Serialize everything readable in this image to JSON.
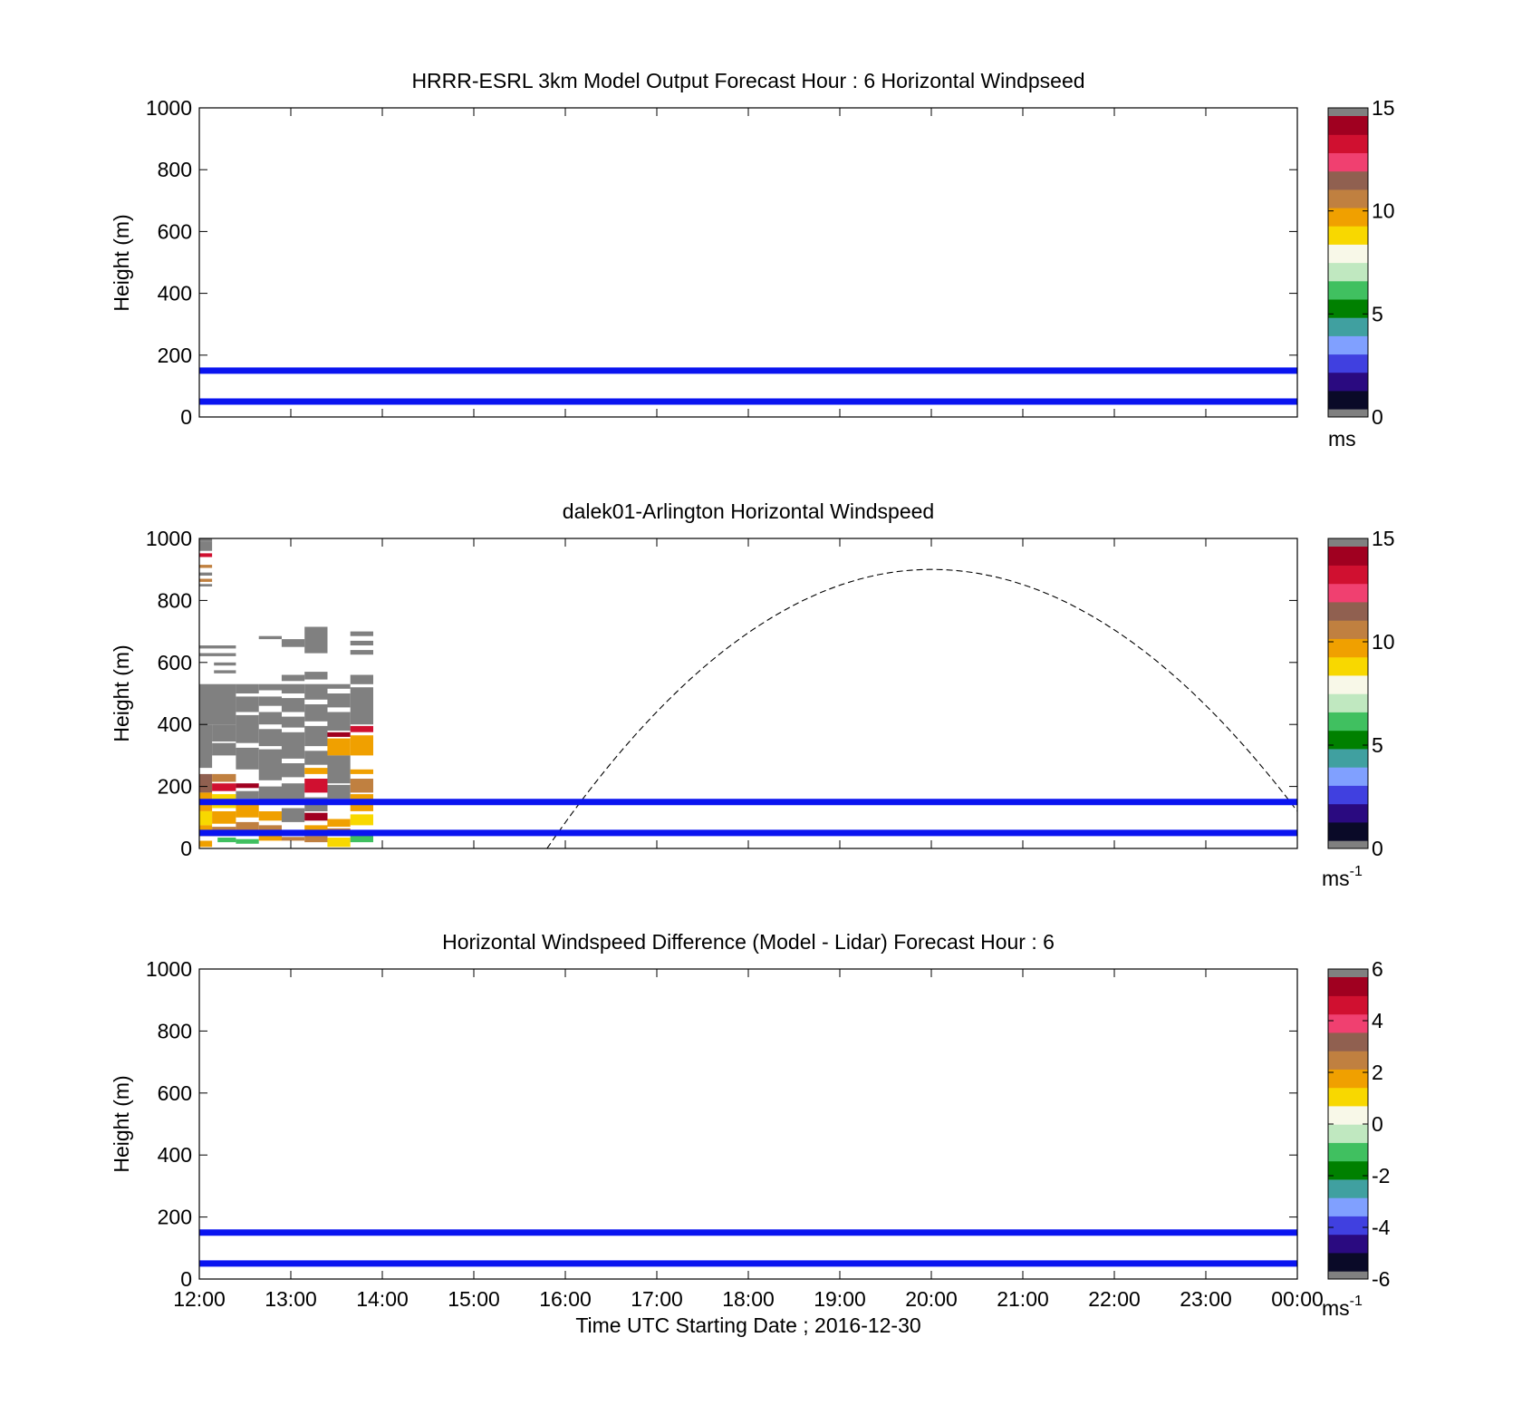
{
  "chart_data": [
    {
      "type": "heatmap",
      "title": "HRRR-ESRL 3km Model Output   Forecast Hour : 6 Horizontal Windpseed",
      "ylabel": "Height (m)",
      "xlabel": "",
      "ylim": [
        0,
        1000
      ],
      "yticks": [
        "0",
        "200",
        "400",
        "600",
        "800",
        "1000"
      ],
      "xlim": [
        12,
        24
      ],
      "xticks": [
        "12:00",
        "13:00",
        "14:00",
        "15:00",
        "16:00",
        "17:00",
        "18:00",
        "19:00",
        "20:00",
        "21:00",
        "22:00",
        "23:00",
        "00:00"
      ],
      "xtick_labels_visible": false,
      "reference_lines": [
        {
          "y": 150,
          "color": "#0a14f0"
        },
        {
          "y": 50,
          "color": "#0a14f0"
        }
      ],
      "colorbar": {
        "min": 0,
        "max": 15,
        "ticks": [
          "0",
          "5",
          "10",
          "15"
        ],
        "unit": "ms",
        "unit_sup": ""
      },
      "cells": [],
      "curve": null
    },
    {
      "type": "heatmap",
      "title": "dalek01-Arlington  Horizontal Windspeed",
      "ylabel": "Height (m)",
      "xlabel": "",
      "ylim": [
        0,
        1000
      ],
      "yticks": [
        "0",
        "200",
        "400",
        "600",
        "800",
        "1000"
      ],
      "xlim": [
        12,
        24
      ],
      "xticks": [
        "12:00",
        "13:00",
        "14:00",
        "15:00",
        "16:00",
        "17:00",
        "18:00",
        "19:00",
        "20:00",
        "21:00",
        "22:00",
        "23:00",
        "00:00"
      ],
      "xtick_labels_visible": false,
      "reference_lines": [
        {
          "y": 150,
          "color": "#0a14f0"
        },
        {
          "y": 50,
          "color": "#0a14f0"
        }
      ],
      "colorbar": {
        "min": 0,
        "max": 15,
        "ticks": [
          "0",
          "5",
          "10",
          "15"
        ],
        "unit": "ms",
        "unit_sup": "-1"
      },
      "curve": {
        "peak_x": 20.0,
        "peak_y": 900,
        "start_x": 15.8,
        "start_y": 0,
        "end_x": 24.0,
        "end_y": 120,
        "style": "dashed"
      },
      "cells": [
        {
          "x": 12.0,
          "w": 0.14,
          "y": 990,
          "h": 10,
          "v": 16
        },
        {
          "x": 12.0,
          "w": 0.14,
          "y": 960,
          "h": 30,
          "v": 16
        },
        {
          "x": 12.0,
          "w": 0.14,
          "y": 940,
          "h": 12,
          "v": 14
        },
        {
          "x": 12.0,
          "w": 0.14,
          "y": 905,
          "h": 10,
          "v": 11
        },
        {
          "x": 12.0,
          "w": 0.14,
          "y": 880,
          "h": 10,
          "v": 16
        },
        {
          "x": 12.0,
          "w": 0.14,
          "y": 860,
          "h": 10,
          "v": 11
        },
        {
          "x": 12.0,
          "w": 0.14,
          "y": 845,
          "h": 8,
          "v": 16
        },
        {
          "x": 12.0,
          "w": 0.4,
          "y": 645,
          "h": 10,
          "v": 16
        },
        {
          "x": 12.0,
          "w": 0.4,
          "y": 620,
          "h": 10,
          "v": 16
        },
        {
          "x": 12.16,
          "w": 0.24,
          "y": 590,
          "h": 10,
          "v": 16
        },
        {
          "x": 12.16,
          "w": 0.24,
          "y": 565,
          "h": 10,
          "v": 16
        },
        {
          "x": 12.0,
          "w": 0.4,
          "y": 400,
          "h": 130,
          "v": 16
        },
        {
          "x": 12.0,
          "w": 0.14,
          "y": 260,
          "h": 140,
          "v": 16
        },
        {
          "x": 12.14,
          "w": 0.26,
          "y": 345,
          "h": 55,
          "v": 16
        },
        {
          "x": 12.0,
          "w": 0.14,
          "y": 180,
          "h": 60,
          "v": 12
        },
        {
          "x": 12.0,
          "w": 0.14,
          "y": 120,
          "h": 60,
          "v": 10
        },
        {
          "x": 12.0,
          "w": 0.14,
          "y": 75,
          "h": 45,
          "v": 9
        },
        {
          "x": 12.0,
          "w": 0.14,
          "y": 40,
          "h": 35,
          "v": 10
        },
        {
          "x": 12.0,
          "w": 0.14,
          "y": 5,
          "h": 20,
          "v": 10
        },
        {
          "x": 12.14,
          "w": 0.26,
          "y": 300,
          "h": 40,
          "v": 16
        },
        {
          "x": 12.14,
          "w": 0.26,
          "y": 215,
          "h": 25,
          "v": 11
        },
        {
          "x": 12.14,
          "w": 0.26,
          "y": 185,
          "h": 25,
          "v": 14
        },
        {
          "x": 12.14,
          "w": 0.26,
          "y": 130,
          "h": 45,
          "v": 9
        },
        {
          "x": 12.14,
          "w": 0.26,
          "y": 80,
          "h": 40,
          "v": 10
        },
        {
          "x": 12.14,
          "w": 0.26,
          "y": 40,
          "h": 30,
          "v": 11
        },
        {
          "x": 12.2,
          "w": 0.2,
          "y": 20,
          "h": 15,
          "v": 6
        },
        {
          "x": 12.4,
          "w": 0.25,
          "y": 500,
          "h": 30,
          "v": 16
        },
        {
          "x": 12.4,
          "w": 0.25,
          "y": 440,
          "h": 50,
          "v": 16
        },
        {
          "x": 12.4,
          "w": 0.25,
          "y": 340,
          "h": 90,
          "v": 16
        },
        {
          "x": 12.4,
          "w": 0.25,
          "y": 255,
          "h": 70,
          "v": 16
        },
        {
          "x": 12.4,
          "w": 0.25,
          "y": 195,
          "h": 15,
          "v": 15
        },
        {
          "x": 12.4,
          "w": 0.25,
          "y": 160,
          "h": 25,
          "v": 16
        },
        {
          "x": 12.4,
          "w": 0.25,
          "y": 100,
          "h": 45,
          "v": 10
        },
        {
          "x": 12.4,
          "w": 0.25,
          "y": 55,
          "h": 30,
          "v": 11
        },
        {
          "x": 12.4,
          "w": 0.25,
          "y": 15,
          "h": 15,
          "v": 6
        },
        {
          "x": 12.65,
          "w": 0.25,
          "y": 675,
          "h": 10,
          "v": 16
        },
        {
          "x": 12.65,
          "w": 0.25,
          "y": 510,
          "h": 20,
          "v": 16
        },
        {
          "x": 12.65,
          "w": 0.25,
          "y": 460,
          "h": 30,
          "v": 16
        },
        {
          "x": 12.65,
          "w": 0.25,
          "y": 400,
          "h": 40,
          "v": 16
        },
        {
          "x": 12.65,
          "w": 0.25,
          "y": 330,
          "h": 55,
          "v": 16
        },
        {
          "x": 12.65,
          "w": 0.25,
          "y": 220,
          "h": 100,
          "v": 16
        },
        {
          "x": 12.65,
          "w": 0.25,
          "y": 140,
          "h": 60,
          "v": 16
        },
        {
          "x": 12.65,
          "w": 0.25,
          "y": 90,
          "h": 30,
          "v": 10
        },
        {
          "x": 12.65,
          "w": 0.25,
          "y": 60,
          "h": 15,
          "v": 11
        },
        {
          "x": 12.65,
          "w": 0.25,
          "y": 25,
          "h": 20,
          "v": 10
        },
        {
          "x": 12.9,
          "w": 0.25,
          "y": 650,
          "h": 25,
          "v": 16
        },
        {
          "x": 12.9,
          "w": 0.25,
          "y": 540,
          "h": 20,
          "v": 16
        },
        {
          "x": 12.9,
          "w": 0.25,
          "y": 500,
          "h": 30,
          "v": 16
        },
        {
          "x": 12.9,
          "w": 0.25,
          "y": 440,
          "h": 45,
          "v": 16
        },
        {
          "x": 12.9,
          "w": 0.25,
          "y": 390,
          "h": 35,
          "v": 16
        },
        {
          "x": 12.9,
          "w": 0.25,
          "y": 290,
          "h": 85,
          "v": 16
        },
        {
          "x": 12.9,
          "w": 0.25,
          "y": 230,
          "h": 45,
          "v": 16
        },
        {
          "x": 12.9,
          "w": 0.25,
          "y": 150,
          "h": 60,
          "v": 16
        },
        {
          "x": 12.9,
          "w": 0.25,
          "y": 85,
          "h": 45,
          "v": 16
        },
        {
          "x": 12.9,
          "w": 0.25,
          "y": 25,
          "h": 12,
          "v": 11
        },
        {
          "x": 13.15,
          "w": 0.25,
          "y": 630,
          "h": 85,
          "v": 16
        },
        {
          "x": 13.15,
          "w": 0.25,
          "y": 545,
          "h": 25,
          "v": 16
        },
        {
          "x": 13.15,
          "w": 0.25,
          "y": 480,
          "h": 50,
          "v": 16
        },
        {
          "x": 13.15,
          "w": 0.25,
          "y": 410,
          "h": 55,
          "v": 16
        },
        {
          "x": 13.15,
          "w": 0.25,
          "y": 330,
          "h": 65,
          "v": 16
        },
        {
          "x": 13.15,
          "w": 0.25,
          "y": 270,
          "h": 45,
          "v": 16
        },
        {
          "x": 13.15,
          "w": 0.25,
          "y": 240,
          "h": 20,
          "v": 10
        },
        {
          "x": 13.15,
          "w": 0.25,
          "y": 180,
          "h": 45,
          "v": 14
        },
        {
          "x": 13.15,
          "w": 0.25,
          "y": 120,
          "h": 45,
          "v": 16
        },
        {
          "x": 13.15,
          "w": 0.25,
          "y": 90,
          "h": 25,
          "v": 15
        },
        {
          "x": 13.15,
          "w": 0.25,
          "y": 55,
          "h": 20,
          "v": 10
        },
        {
          "x": 13.15,
          "w": 0.25,
          "y": 20,
          "h": 20,
          "v": 11
        },
        {
          "x": 13.4,
          "w": 0.25,
          "y": 515,
          "h": 15,
          "v": 16
        },
        {
          "x": 13.4,
          "w": 0.25,
          "y": 455,
          "h": 45,
          "v": 16
        },
        {
          "x": 13.4,
          "w": 0.25,
          "y": 380,
          "h": 60,
          "v": 16
        },
        {
          "x": 13.4,
          "w": 0.25,
          "y": 360,
          "h": 15,
          "v": 15
        },
        {
          "x": 13.4,
          "w": 0.25,
          "y": 300,
          "h": 55,
          "v": 10
        },
        {
          "x": 13.4,
          "w": 0.25,
          "y": 210,
          "h": 90,
          "v": 16
        },
        {
          "x": 13.4,
          "w": 0.25,
          "y": 160,
          "h": 45,
          "v": 16
        },
        {
          "x": 13.4,
          "w": 0.25,
          "y": 70,
          "h": 25,
          "v": 10
        },
        {
          "x": 13.4,
          "w": 0.25,
          "y": 40,
          "h": 25,
          "v": 11
        },
        {
          "x": 13.4,
          "w": 0.25,
          "y": 5,
          "h": 30,
          "v": 9
        },
        {
          "x": 13.65,
          "w": 0.25,
          "y": 685,
          "h": 15,
          "v": 16
        },
        {
          "x": 13.65,
          "w": 0.25,
          "y": 655,
          "h": 15,
          "v": 16
        },
        {
          "x": 13.65,
          "w": 0.25,
          "y": 625,
          "h": 15,
          "v": 16
        },
        {
          "x": 13.65,
          "w": 0.25,
          "y": 530,
          "h": 30,
          "v": 16
        },
        {
          "x": 13.65,
          "w": 0.25,
          "y": 400,
          "h": 120,
          "v": 16
        },
        {
          "x": 13.65,
          "w": 0.25,
          "y": 375,
          "h": 20,
          "v": 14
        },
        {
          "x": 13.65,
          "w": 0.25,
          "y": 300,
          "h": 65,
          "v": 10
        },
        {
          "x": 13.65,
          "w": 0.25,
          "y": 240,
          "h": 15,
          "v": 10
        },
        {
          "x": 13.65,
          "w": 0.25,
          "y": 180,
          "h": 45,
          "v": 11
        },
        {
          "x": 13.65,
          "w": 0.25,
          "y": 120,
          "h": 55,
          "v": 10
        },
        {
          "x": 13.65,
          "w": 0.25,
          "y": 75,
          "h": 35,
          "v": 9
        },
        {
          "x": 13.65,
          "w": 0.25,
          "y": 20,
          "h": 25,
          "v": 6
        }
      ]
    },
    {
      "type": "heatmap",
      "title": "Horizontal Windspeed Difference (Model - Lidar) Forecast Hour : 6",
      "ylabel": "Height (m)",
      "xlabel": "Time UTC  Starting Date ; 2016-12-30",
      "ylim": [
        0,
        1000
      ],
      "yticks": [
        "0",
        "200",
        "400",
        "600",
        "800",
        "1000"
      ],
      "xlim": [
        12,
        24
      ],
      "xticks": [
        "12:00",
        "13:00",
        "14:00",
        "15:00",
        "16:00",
        "17:00",
        "18:00",
        "19:00",
        "20:00",
        "21:00",
        "22:00",
        "23:00",
        "00:00"
      ],
      "xtick_labels_visible": true,
      "reference_lines": [
        {
          "y": 150,
          "color": "#0a14f0"
        },
        {
          "y": 50,
          "color": "#0a14f0"
        }
      ],
      "colorbar": {
        "min": -6,
        "max": 6,
        "ticks": [
          "-6",
          "-4",
          "-2",
          "0",
          "2",
          "4",
          "6"
        ],
        "unit": "ms",
        "unit_sup": "-1"
      },
      "cells": [],
      "curve": null
    }
  ],
  "colormap": {
    "under_over": "#808080",
    "stops": [
      "#0a0a28",
      "#2a0a80",
      "#4040e0",
      "#80a0ff",
      "#40a0a0",
      "#008000",
      "#40c060",
      "#c0e8c0",
      "#f8f8e8",
      "#f8d800",
      "#f0a000",
      "#c08040",
      "#906050",
      "#f04070",
      "#d01030",
      "#a00020"
    ]
  }
}
